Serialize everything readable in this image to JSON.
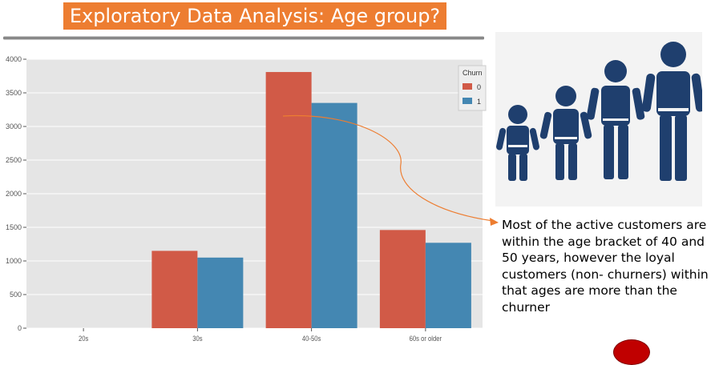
{
  "slide": {
    "title": "Exploratory Data Analysis: Age group?",
    "caption": "Most of the active customers are within the age bracket of 40 and 50 years, however the loyal customers (non- churners) within that ages are more than the churner",
    "colors": {
      "banner": "#ed7d31",
      "arrow": "#ed7d31",
      "people": "#1f3f6e"
    }
  },
  "chart_data": {
    "type": "bar",
    "categories": [
      "20s",
      "30s",
      "40-50s",
      "60s or older"
    ],
    "series": [
      {
        "name": "0",
        "values": [
          0,
          1150,
          3810,
          1460
        ],
        "color": "#d15a47"
      },
      {
        "name": "1",
        "values": [
          0,
          1050,
          3350,
          1270
        ],
        "color": "#4487b2"
      }
    ],
    "legend_title": "Churn",
    "legend_position": "top-right",
    "ylim": [
      0,
      4000
    ],
    "yticks": [
      0,
      500,
      1000,
      1500,
      2000,
      2500,
      3000,
      3500,
      4000
    ],
    "grid": true,
    "background": "#e5e5e5"
  }
}
